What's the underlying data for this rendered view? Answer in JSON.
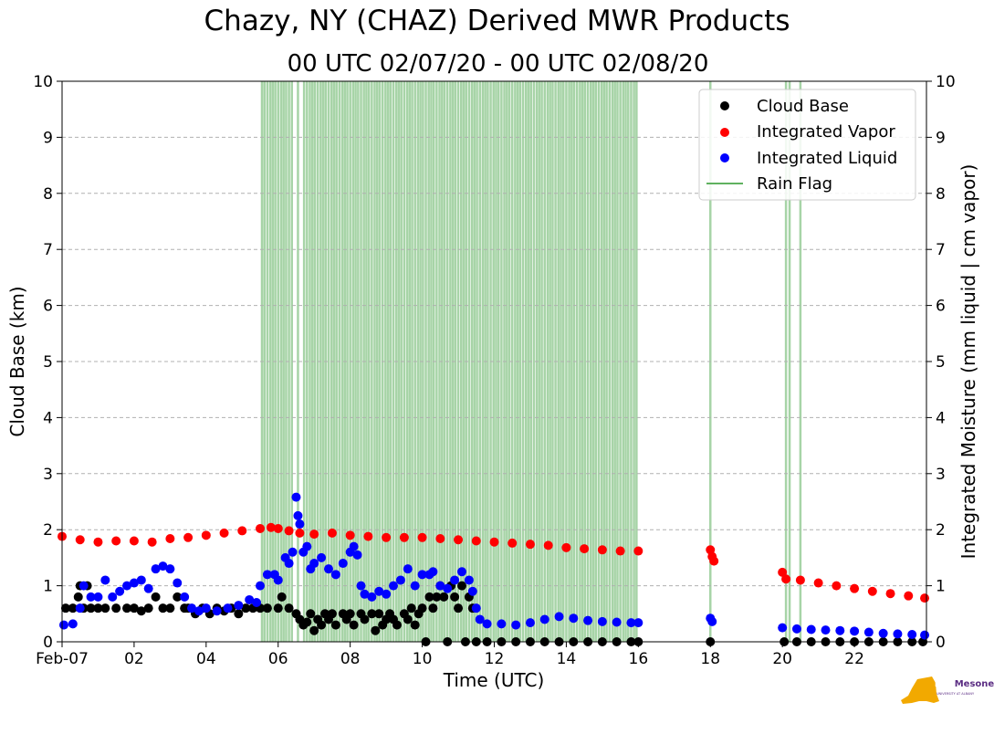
{
  "chart_data": {
    "type": "scatter",
    "title": "Chazy, NY (CHAZ) Derived MWR Products",
    "subtitle": "00 UTC 02/07/20 - 00 UTC 02/08/20",
    "xlabel": "Time (UTC)",
    "ylabel_left": "Cloud Base (km)",
    "ylabel_right": "Integrated Moisture (mm liquid | cm vapor)",
    "xlim": [
      0,
      24
    ],
    "ylim_left": [
      0,
      10
    ],
    "ylim_right": [
      0,
      10
    ],
    "x_ticks": [
      0,
      2,
      4,
      6,
      8,
      10,
      12,
      14,
      16,
      18,
      20,
      22
    ],
    "x_tick_labels": [
      "Feb-07",
      "02",
      "04",
      "06",
      "08",
      "10",
      "12",
      "14",
      "16",
      "18",
      "20",
      "22"
    ],
    "y_ticks": [
      0,
      1,
      2,
      3,
      4,
      5,
      6,
      7,
      8,
      9,
      10
    ],
    "y_tick_labels": [
      "0",
      "1",
      "2",
      "3",
      "4",
      "5",
      "6",
      "7",
      "8",
      "9",
      "10"
    ],
    "grid": "horizontal dashed",
    "legend_position": "top-right",
    "legend": [
      {
        "label": "Cloud Base",
        "color": "#000000",
        "marker": "dot"
      },
      {
        "label": "Integrated Vapor",
        "color": "#ff0000",
        "marker": "dot"
      },
      {
        "label": "Integrated Liquid",
        "color": "#0000ff",
        "marker": "dot"
      },
      {
        "label": "Rain Flag",
        "color": "#5fb15f",
        "marker": "line"
      }
    ],
    "series": [
      {
        "name": "Cloud Base",
        "color": "#000000",
        "points": [
          [
            0.1,
            0.6
          ],
          [
            0.3,
            0.6
          ],
          [
            0.45,
            0.8
          ],
          [
            0.5,
            1.0
          ],
          [
            0.6,
            0.6
          ],
          [
            0.7,
            1.0
          ],
          [
            0.8,
            0.6
          ],
          [
            1.0,
            0.6
          ],
          [
            1.2,
            0.6
          ],
          [
            1.5,
            0.6
          ],
          [
            1.8,
            0.6
          ],
          [
            2.0,
            0.6
          ],
          [
            2.2,
            0.55
          ],
          [
            2.4,
            0.6
          ],
          [
            2.6,
            0.8
          ],
          [
            2.8,
            0.6
          ],
          [
            3.0,
            0.6
          ],
          [
            3.2,
            0.8
          ],
          [
            3.4,
            0.6
          ],
          [
            3.5,
            0.6
          ],
          [
            3.7,
            0.5
          ],
          [
            3.9,
            0.6
          ],
          [
            4.1,
            0.5
          ],
          [
            4.3,
            0.6
          ],
          [
            4.5,
            0.55
          ],
          [
            4.7,
            0.6
          ],
          [
            4.9,
            0.5
          ],
          [
            5.1,
            0.6
          ],
          [
            5.3,
            0.6
          ],
          [
            5.5,
            0.6
          ],
          [
            5.7,
            0.6
          ],
          [
            6.0,
            0.6
          ],
          [
            6.1,
            0.8
          ],
          [
            6.3,
            0.6
          ],
          [
            6.5,
            0.5
          ],
          [
            6.6,
            0.4
          ],
          [
            6.7,
            0.3
          ],
          [
            6.8,
            0.35
          ],
          [
            6.9,
            0.5
          ],
          [
            7.0,
            0.2
          ],
          [
            7.1,
            0.4
          ],
          [
            7.2,
            0.3
          ],
          [
            7.3,
            0.5
          ],
          [
            7.4,
            0.4
          ],
          [
            7.5,
            0.5
          ],
          [
            7.6,
            0.3
          ],
          [
            7.8,
            0.5
          ],
          [
            7.9,
            0.4
          ],
          [
            8.0,
            0.5
          ],
          [
            8.1,
            0.3
          ],
          [
            8.3,
            0.5
          ],
          [
            8.4,
            0.4
          ],
          [
            8.6,
            0.5
          ],
          [
            8.7,
            0.2
          ],
          [
            8.8,
            0.5
          ],
          [
            8.9,
            0.3
          ],
          [
            9.0,
            0.4
          ],
          [
            9.1,
            0.5
          ],
          [
            9.2,
            0.4
          ],
          [
            9.3,
            0.3
          ],
          [
            9.5,
            0.5
          ],
          [
            9.6,
            0.4
          ],
          [
            9.7,
            0.6
          ],
          [
            9.8,
            0.3
          ],
          [
            9.9,
            0.5
          ],
          [
            10.0,
            0.6
          ],
          [
            10.1,
            0.0
          ],
          [
            10.2,
            0.8
          ],
          [
            10.3,
            0.6
          ],
          [
            10.4,
            0.8
          ],
          [
            10.5,
            1.0
          ],
          [
            10.6,
            0.8
          ],
          [
            10.7,
            0.0
          ],
          [
            10.8,
            1.0
          ],
          [
            10.9,
            0.8
          ],
          [
            11.0,
            0.6
          ],
          [
            11.1,
            1.0
          ],
          [
            11.2,
            0.0
          ],
          [
            11.3,
            0.8
          ],
          [
            11.4,
            0.6
          ],
          [
            11.5,
            0.0
          ],
          [
            11.8,
            0.0
          ],
          [
            12.2,
            0.0
          ],
          [
            12.6,
            0.0
          ],
          [
            13.0,
            0.0
          ],
          [
            13.4,
            0.0
          ],
          [
            13.8,
            0.0
          ],
          [
            14.2,
            0.0
          ],
          [
            14.6,
            0.0
          ],
          [
            15.0,
            0.0
          ],
          [
            15.4,
            0.0
          ],
          [
            15.8,
            0.0
          ],
          [
            16.0,
            0.0
          ],
          [
            18.0,
            0.0
          ],
          [
            20.05,
            0.0
          ],
          [
            20.4,
            0.0
          ],
          [
            20.8,
            0.0
          ],
          [
            21.2,
            0.0
          ],
          [
            21.6,
            0.0
          ],
          [
            22.0,
            0.0
          ],
          [
            22.4,
            0.0
          ],
          [
            22.8,
            0.0
          ],
          [
            23.2,
            0.0
          ],
          [
            23.6,
            0.0
          ],
          [
            23.9,
            0.0
          ]
        ]
      },
      {
        "name": "Integrated Vapor",
        "color": "#ff0000",
        "points": [
          [
            0.0,
            1.88
          ],
          [
            0.5,
            1.82
          ],
          [
            1.0,
            1.78
          ],
          [
            1.5,
            1.8
          ],
          [
            2.0,
            1.8
          ],
          [
            2.5,
            1.78
          ],
          [
            3.0,
            1.84
          ],
          [
            3.5,
            1.86
          ],
          [
            4.0,
            1.9
          ],
          [
            4.5,
            1.94
          ],
          [
            5.0,
            1.98
          ],
          [
            5.5,
            2.02
          ],
          [
            5.8,
            2.04
          ],
          [
            6.0,
            2.02
          ],
          [
            6.3,
            1.98
          ],
          [
            6.6,
            1.94
          ],
          [
            7.0,
            1.92
          ],
          [
            7.5,
            1.94
          ],
          [
            8.0,
            1.9
          ],
          [
            8.5,
            1.88
          ],
          [
            9.0,
            1.86
          ],
          [
            9.5,
            1.86
          ],
          [
            10.0,
            1.86
          ],
          [
            10.5,
            1.84
          ],
          [
            11.0,
            1.82
          ],
          [
            11.5,
            1.8
          ],
          [
            12.0,
            1.78
          ],
          [
            12.5,
            1.76
          ],
          [
            13.0,
            1.74
          ],
          [
            13.5,
            1.72
          ],
          [
            14.0,
            1.68
          ],
          [
            14.5,
            1.66
          ],
          [
            15.0,
            1.64
          ],
          [
            15.5,
            1.62
          ],
          [
            16.0,
            1.62
          ],
          [
            18.0,
            1.64
          ],
          [
            18.05,
            1.52
          ],
          [
            18.1,
            1.44
          ],
          [
            20.0,
            1.24
          ],
          [
            20.1,
            1.12
          ],
          [
            20.5,
            1.1
          ],
          [
            21.0,
            1.05
          ],
          [
            21.5,
            1.0
          ],
          [
            22.0,
            0.95
          ],
          [
            22.5,
            0.9
          ],
          [
            23.0,
            0.86
          ],
          [
            23.5,
            0.82
          ],
          [
            23.95,
            0.78
          ]
        ]
      },
      {
        "name": "Integrated Liquid",
        "color": "#0000ff",
        "points": [
          [
            0.05,
            0.3
          ],
          [
            0.3,
            0.32
          ],
          [
            0.5,
            0.6
          ],
          [
            0.6,
            1.0
          ],
          [
            0.8,
            0.8
          ],
          [
            1.0,
            0.8
          ],
          [
            1.2,
            1.1
          ],
          [
            1.4,
            0.8
          ],
          [
            1.6,
            0.9
          ],
          [
            1.8,
            1.0
          ],
          [
            2.0,
            1.05
          ],
          [
            2.2,
            1.1
          ],
          [
            2.4,
            0.95
          ],
          [
            2.6,
            1.3
          ],
          [
            2.8,
            1.35
          ],
          [
            3.0,
            1.3
          ],
          [
            3.2,
            1.05
          ],
          [
            3.4,
            0.8
          ],
          [
            3.6,
            0.6
          ],
          [
            3.8,
            0.55
          ],
          [
            4.0,
            0.6
          ],
          [
            4.3,
            0.55
          ],
          [
            4.6,
            0.6
          ],
          [
            4.9,
            0.65
          ],
          [
            5.2,
            0.75
          ],
          [
            5.4,
            0.7
          ],
          [
            5.5,
            1.0
          ],
          [
            5.7,
            1.2
          ],
          [
            5.9,
            1.2
          ],
          [
            6.0,
            1.1
          ],
          [
            6.2,
            1.5
          ],
          [
            6.3,
            1.4
          ],
          [
            6.4,
            1.6
          ],
          [
            6.5,
            2.58
          ],
          [
            6.55,
            2.25
          ],
          [
            6.6,
            2.1
          ],
          [
            6.7,
            1.6
          ],
          [
            6.8,
            1.7
          ],
          [
            6.9,
            1.3
          ],
          [
            7.0,
            1.4
          ],
          [
            7.2,
            1.5
          ],
          [
            7.4,
            1.3
          ],
          [
            7.6,
            1.2
          ],
          [
            7.8,
            1.4
          ],
          [
            8.0,
            1.6
          ],
          [
            8.1,
            1.7
          ],
          [
            8.2,
            1.55
          ],
          [
            8.3,
            1.0
          ],
          [
            8.4,
            0.85
          ],
          [
            8.6,
            0.8
          ],
          [
            8.8,
            0.9
          ],
          [
            9.0,
            0.85
          ],
          [
            9.2,
            1.0
          ],
          [
            9.4,
            1.1
          ],
          [
            9.6,
            1.3
          ],
          [
            9.8,
            1.0
          ],
          [
            10.0,
            1.2
          ],
          [
            10.2,
            1.2
          ],
          [
            10.3,
            1.25
          ],
          [
            10.5,
            1.0
          ],
          [
            10.7,
            0.95
          ],
          [
            10.9,
            1.1
          ],
          [
            11.1,
            1.25
          ],
          [
            11.3,
            1.1
          ],
          [
            11.4,
            0.9
          ],
          [
            11.5,
            0.6
          ],
          [
            11.6,
            0.4
          ],
          [
            11.8,
            0.32
          ],
          [
            12.2,
            0.32
          ],
          [
            12.6,
            0.3
          ],
          [
            13.0,
            0.34
          ],
          [
            13.4,
            0.4
          ],
          [
            13.8,
            0.45
          ],
          [
            14.2,
            0.42
          ],
          [
            14.6,
            0.38
          ],
          [
            15.0,
            0.36
          ],
          [
            15.4,
            0.35
          ],
          [
            15.8,
            0.34
          ],
          [
            16.0,
            0.34
          ],
          [
            18.0,
            0.42
          ],
          [
            18.05,
            0.36
          ],
          [
            20.0,
            0.25
          ],
          [
            20.4,
            0.23
          ],
          [
            20.8,
            0.22
          ],
          [
            21.2,
            0.21
          ],
          [
            21.6,
            0.2
          ],
          [
            22.0,
            0.19
          ],
          [
            22.4,
            0.17
          ],
          [
            22.8,
            0.15
          ],
          [
            23.2,
            0.14
          ],
          [
            23.6,
            0.13
          ],
          [
            23.95,
            0.12
          ]
        ]
      }
    ],
    "rain_flag_times": [
      5.55,
      5.62,
      5.7,
      5.78,
      5.85,
      5.92,
      6.0,
      6.08,
      6.15,
      6.22,
      6.3,
      6.38,
      6.55,
      6.72,
      6.8,
      6.88,
      6.95,
      7.02,
      7.1,
      7.18,
      7.25,
      7.32,
      7.4,
      7.48,
      7.55,
      7.62,
      7.7,
      7.78,
      7.85,
      7.92,
      8.0,
      8.08,
      8.15,
      8.22,
      8.3,
      8.38,
      8.45,
      8.52,
      8.6,
      8.68,
      8.75,
      8.82,
      8.9,
      8.98,
      9.05,
      9.12,
      9.2,
      9.28,
      9.35,
      9.42,
      9.5,
      9.58,
      9.65,
      9.72,
      9.8,
      9.88,
      9.95,
      10.02,
      10.1,
      10.18,
      10.25,
      10.32,
      10.4,
      10.48,
      10.55,
      10.62,
      10.7,
      10.78,
      10.85,
      10.92,
      11.0,
      11.08,
      11.15,
      11.22,
      11.3,
      11.38,
      11.45,
      11.52,
      11.6,
      11.68,
      11.75,
      11.82,
      11.9,
      11.98,
      12.05,
      12.12,
      12.2,
      12.28,
      12.35,
      12.42,
      12.5,
      12.58,
      12.65,
      12.72,
      12.8,
      12.88,
      12.95,
      13.02,
      13.1,
      13.18,
      13.25,
      13.32,
      13.4,
      13.48,
      13.55,
      13.62,
      13.7,
      13.78,
      13.85,
      13.92,
      14.0,
      14.08,
      14.15,
      14.22,
      14.3,
      14.38,
      14.45,
      14.52,
      14.6,
      14.68,
      14.75,
      14.82,
      14.9,
      14.98,
      15.05,
      15.12,
      15.2,
      15.28,
      15.35,
      15.42,
      15.5,
      15.58,
      15.65,
      15.72,
      15.8,
      15.88,
      15.95,
      18.0,
      20.1,
      20.2,
      20.5
    ]
  },
  "logo": {
    "text": "Mesonet",
    "prefix": "NYS",
    "subtext": "UNIVERSITY AT ALBANY"
  },
  "colors": {
    "rain": "#5fb15f",
    "grid": "#b0b0b0",
    "logo_state": "#f2a900",
    "logo_text": "#5b2d83"
  }
}
